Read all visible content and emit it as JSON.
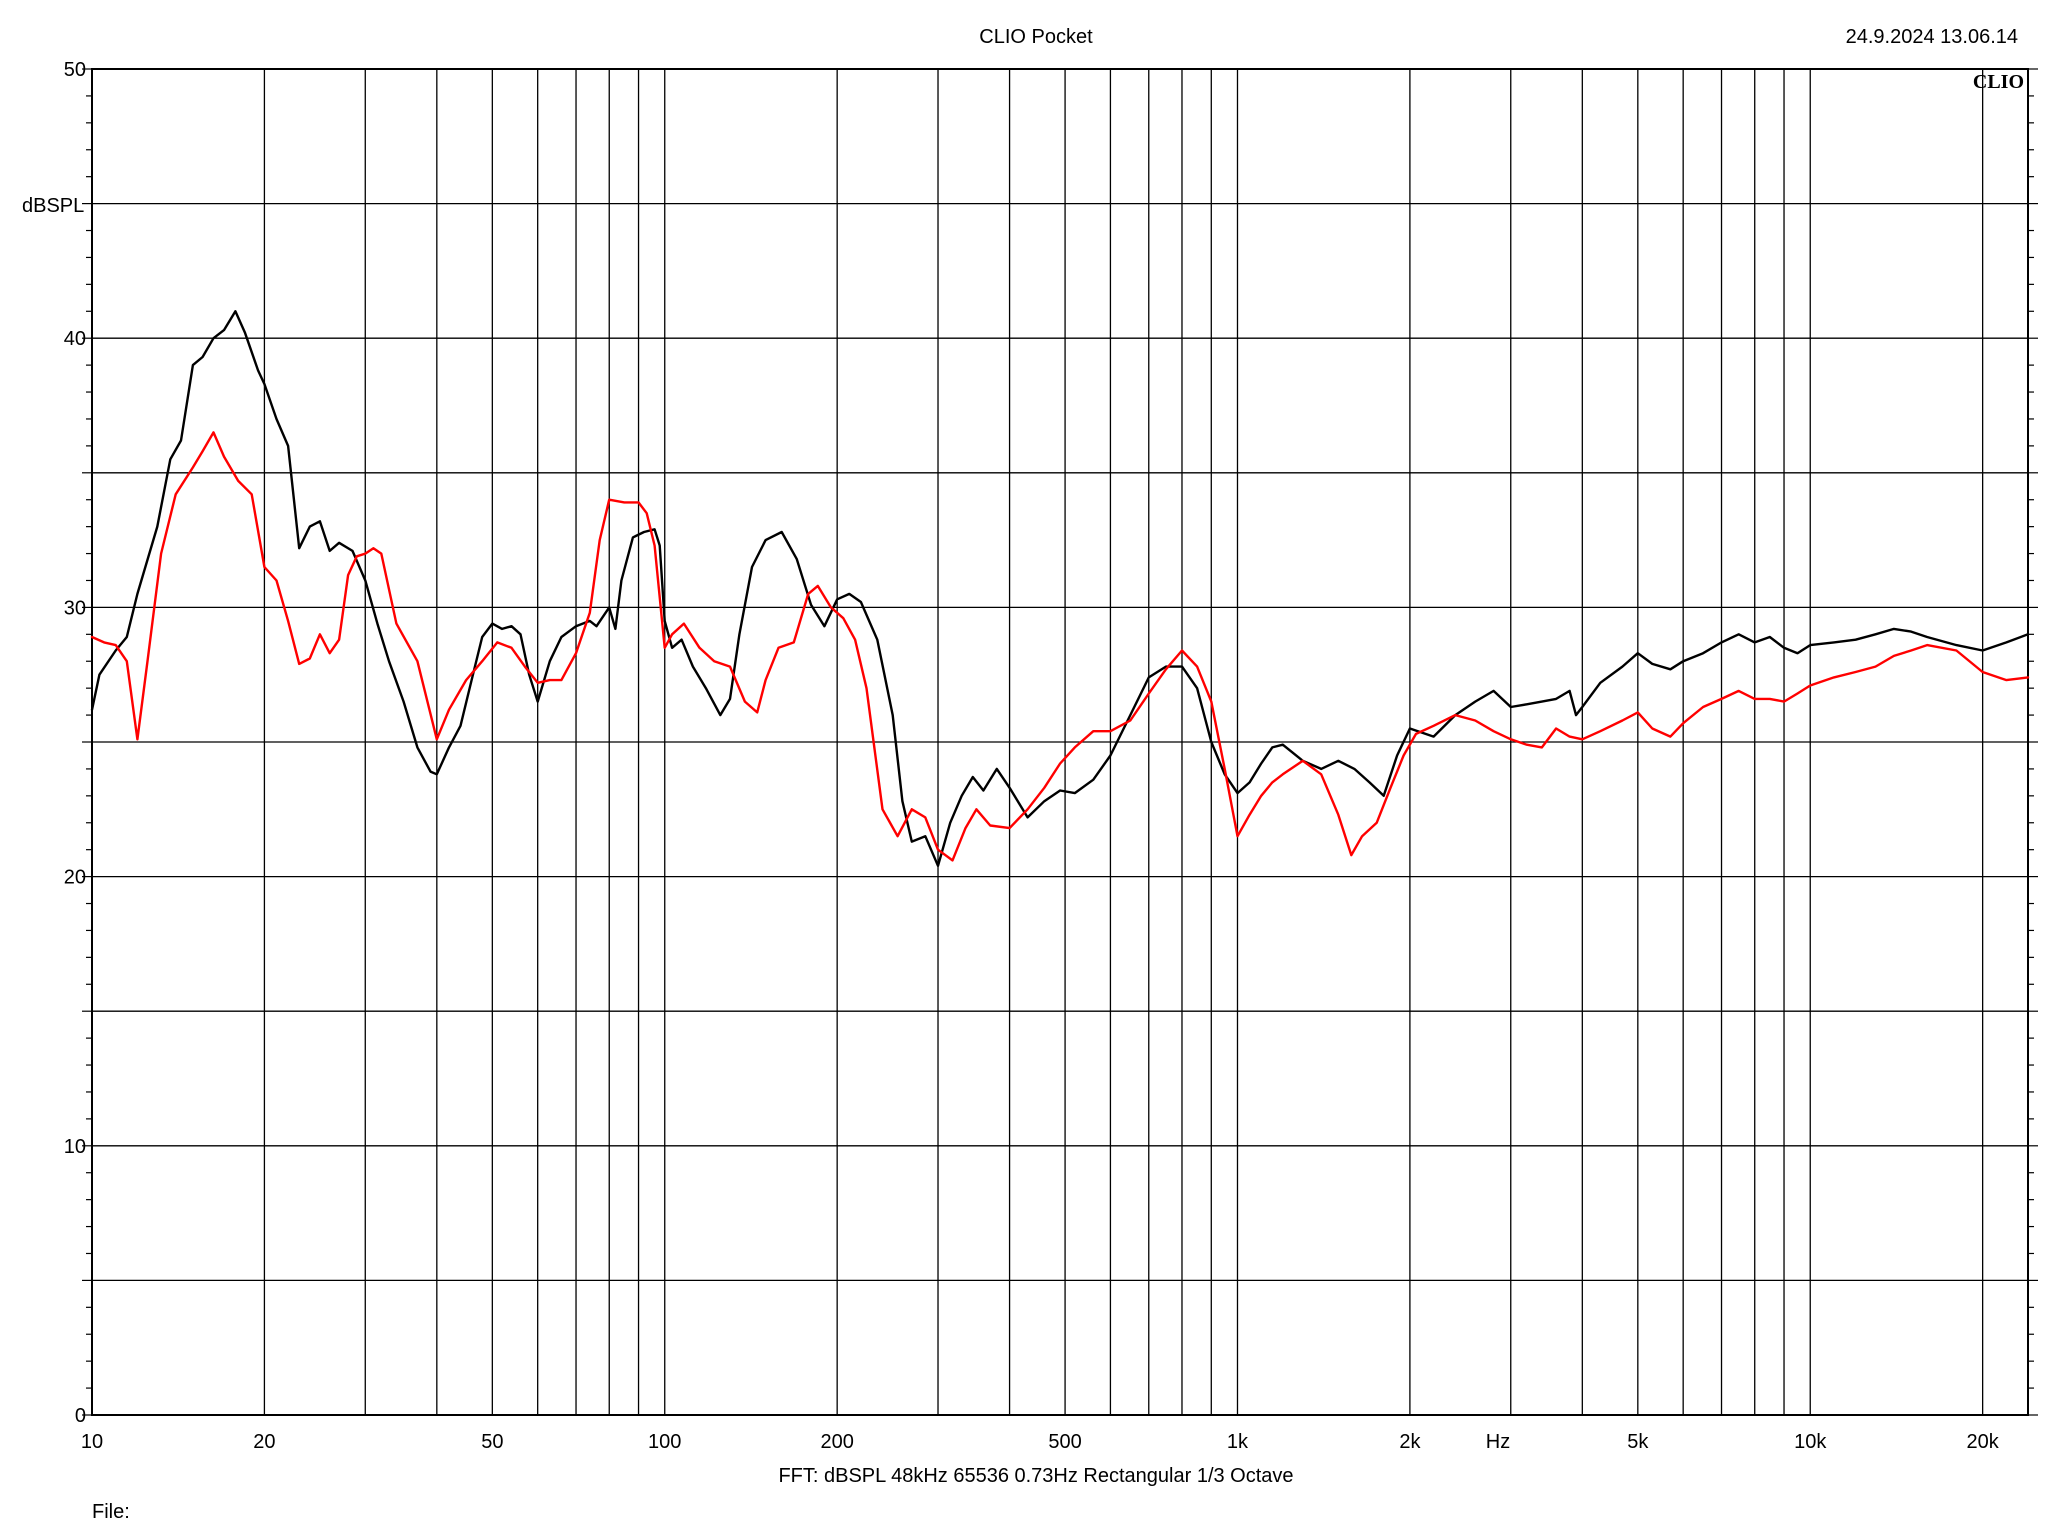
{
  "header": {
    "title": "CLIO Pocket",
    "timestamp": "24.9.2024 13.06.14",
    "logo": "CLIO"
  },
  "footer": {
    "settings": "FFT:  dBSPL  48kHz   65536  0.73Hz  Rectangular  1/3 Octave",
    "file_label": "File:"
  },
  "chart_data": {
    "type": "line",
    "title": "CLIO Pocket",
    "xlabel": "Hz",
    "ylabel": "dBSPL",
    "xscale": "log",
    "xlim": [
      10,
      24000
    ],
    "ylim": [
      0,
      50
    ],
    "grid": true,
    "x_ticks": [
      {
        "value": 10,
        "label": "10"
      },
      {
        "value": 20,
        "label": "20"
      },
      {
        "value": 50,
        "label": "50"
      },
      {
        "value": 100,
        "label": "100"
      },
      {
        "value": 200,
        "label": "200"
      },
      {
        "value": 500,
        "label": "500"
      },
      {
        "value": 1000,
        "label": "1k"
      },
      {
        "value": 2000,
        "label": "2k"
      },
      {
        "value": 5000,
        "label": "5k"
      },
      {
        "value": 10000,
        "label": "10k"
      },
      {
        "value": 20000,
        "label": "20k"
      }
    ],
    "y_ticks": [
      {
        "value": 0,
        "label": "0"
      },
      {
        "value": 10,
        "label": "10"
      },
      {
        "value": 20,
        "label": "20"
      },
      {
        "value": 30,
        "label": "30"
      },
      {
        "value": 40,
        "label": "40"
      },
      {
        "value": 50,
        "label": "50"
      }
    ],
    "series": [
      {
        "color": "#000000",
        "points": [
          [
            10,
            26.2
          ],
          [
            10.3,
            27.5
          ],
          [
            11,
            28.4
          ],
          [
            11.5,
            28.9
          ],
          [
            12,
            30.5
          ],
          [
            13,
            33.0
          ],
          [
            13.7,
            35.5
          ],
          [
            14.3,
            36.2
          ],
          [
            15,
            39.0
          ],
          [
            15.6,
            39.3
          ],
          [
            16.3,
            40.0
          ],
          [
            17,
            40.3
          ],
          [
            17.8,
            41.0
          ],
          [
            18.5,
            40.2
          ],
          [
            19.5,
            38.8
          ],
          [
            20,
            38.3
          ],
          [
            21,
            37.0
          ],
          [
            22,
            36.0
          ],
          [
            23,
            32.2
          ],
          [
            24,
            33.0
          ],
          [
            25,
            33.2
          ],
          [
            26,
            32.1
          ],
          [
            27,
            32.4
          ],
          [
            28.5,
            32.1
          ],
          [
            30,
            31.0
          ],
          [
            31.5,
            29.4
          ],
          [
            33,
            28.0
          ],
          [
            35,
            26.5
          ],
          [
            37,
            24.8
          ],
          [
            39,
            23.9
          ],
          [
            40,
            23.8
          ],
          [
            42,
            24.8
          ],
          [
            44,
            25.6
          ],
          [
            46,
            27.3
          ],
          [
            48,
            28.9
          ],
          [
            50,
            29.4
          ],
          [
            52,
            29.2
          ],
          [
            54,
            29.3
          ],
          [
            56,
            29.0
          ],
          [
            58,
            27.5
          ],
          [
            60,
            26.5
          ],
          [
            63,
            28.0
          ],
          [
            66,
            28.9
          ],
          [
            70,
            29.3
          ],
          [
            74,
            29.5
          ],
          [
            76,
            29.3
          ],
          [
            80,
            30.0
          ],
          [
            82,
            29.2
          ],
          [
            84,
            31.0
          ],
          [
            88,
            32.6
          ],
          [
            92,
            32.8
          ],
          [
            96,
            32.9
          ],
          [
            98,
            32.3
          ],
          [
            100,
            29.5
          ],
          [
            103,
            28.5
          ],
          [
            107,
            28.8
          ],
          [
            112,
            27.8
          ],
          [
            118,
            27.0
          ],
          [
            125,
            26.0
          ],
          [
            130,
            26.6
          ],
          [
            135,
            29.0
          ],
          [
            142,
            31.5
          ],
          [
            150,
            32.5
          ],
          [
            160,
            32.8
          ],
          [
            170,
            31.8
          ],
          [
            180,
            30.1
          ],
          [
            190,
            29.3
          ],
          [
            200,
            30.3
          ],
          [
            210,
            30.5
          ],
          [
            220,
            30.2
          ],
          [
            235,
            28.8
          ],
          [
            250,
            26.0
          ],
          [
            260,
            22.8
          ],
          [
            270,
            21.3
          ],
          [
            285,
            21.5
          ],
          [
            300,
            20.4
          ],
          [
            315,
            22.0
          ],
          [
            330,
            23.0
          ],
          [
            345,
            23.7
          ],
          [
            360,
            23.2
          ],
          [
            380,
            24.0
          ],
          [
            400,
            23.3
          ],
          [
            430,
            22.2
          ],
          [
            460,
            22.8
          ],
          [
            490,
            23.2
          ],
          [
            520,
            23.1
          ],
          [
            560,
            23.6
          ],
          [
            600,
            24.5
          ],
          [
            650,
            26.0
          ],
          [
            700,
            27.4
          ],
          [
            750,
            27.8
          ],
          [
            800,
            27.8
          ],
          [
            850,
            27.0
          ],
          [
            900,
            25.0
          ],
          [
            950,
            23.8
          ],
          [
            1000,
            23.1
          ],
          [
            1050,
            23.5
          ],
          [
            1100,
            24.2
          ],
          [
            1150,
            24.8
          ],
          [
            1200,
            24.9
          ],
          [
            1300,
            24.3
          ],
          [
            1400,
            24.0
          ],
          [
            1500,
            24.3
          ],
          [
            1600,
            24.0
          ],
          [
            1700,
            23.5
          ],
          [
            1800,
            23.0
          ],
          [
            1900,
            24.5
          ],
          [
            2000,
            25.5
          ],
          [
            2200,
            25.2
          ],
          [
            2400,
            26.0
          ],
          [
            2600,
            26.5
          ],
          [
            2800,
            26.9
          ],
          [
            3000,
            26.3
          ],
          [
            3200,
            26.4
          ],
          [
            3400,
            26.5
          ],
          [
            3600,
            26.6
          ],
          [
            3800,
            26.9
          ],
          [
            3900,
            26.0
          ],
          [
            4000,
            26.3
          ],
          [
            4300,
            27.2
          ],
          [
            4700,
            27.8
          ],
          [
            5000,
            28.3
          ],
          [
            5300,
            27.9
          ],
          [
            5700,
            27.7
          ],
          [
            6000,
            28.0
          ],
          [
            6500,
            28.3
          ],
          [
            7000,
            28.7
          ],
          [
            7500,
            29.0
          ],
          [
            8000,
            28.7
          ],
          [
            8500,
            28.9
          ],
          [
            9000,
            28.5
          ],
          [
            9500,
            28.3
          ],
          [
            10000,
            28.6
          ],
          [
            11000,
            28.7
          ],
          [
            12000,
            28.8
          ],
          [
            13000,
            29.0
          ],
          [
            14000,
            29.2
          ],
          [
            15000,
            29.1
          ],
          [
            16000,
            28.9
          ],
          [
            18000,
            28.6
          ],
          [
            20000,
            28.4
          ],
          [
            22000,
            28.7
          ],
          [
            24000,
            29.0
          ]
        ]
      },
      {
        "color": "#ff0000",
        "points": [
          [
            10,
            28.9
          ],
          [
            10.5,
            28.7
          ],
          [
            11,
            28.6
          ],
          [
            11.5,
            28.0
          ],
          [
            12,
            25.1
          ],
          [
            12.5,
            28.0
          ],
          [
            13.2,
            32.0
          ],
          [
            14,
            34.2
          ],
          [
            15,
            35.2
          ],
          [
            15.6,
            35.8
          ],
          [
            16.3,
            36.5
          ],
          [
            17,
            35.6
          ],
          [
            18,
            34.7
          ],
          [
            19,
            34.2
          ],
          [
            20,
            31.5
          ],
          [
            21,
            31.0
          ],
          [
            22,
            29.5
          ],
          [
            23,
            27.9
          ],
          [
            24,
            28.1
          ],
          [
            25,
            29.0
          ],
          [
            26,
            28.3
          ],
          [
            27,
            28.8
          ],
          [
            28,
            31.2
          ],
          [
            29,
            31.9
          ],
          [
            30,
            32.0
          ],
          [
            31,
            32.2
          ],
          [
            32,
            32.0
          ],
          [
            34,
            29.4
          ],
          [
            37,
            28.0
          ],
          [
            40,
            25.1
          ],
          [
            42,
            26.2
          ],
          [
            45,
            27.3
          ],
          [
            48,
            28.0
          ],
          [
            51,
            28.7
          ],
          [
            54,
            28.5
          ],
          [
            57,
            27.8
          ],
          [
            60,
            27.2
          ],
          [
            63,
            27.3
          ],
          [
            66,
            27.3
          ],
          [
            70,
            28.3
          ],
          [
            74,
            29.8
          ],
          [
            77,
            32.5
          ],
          [
            80,
            34.0
          ],
          [
            85,
            33.9
          ],
          [
            90,
            33.9
          ],
          [
            93,
            33.5
          ],
          [
            96,
            32.3
          ],
          [
            100,
            28.5
          ],
          [
            103,
            29.0
          ],
          [
            108,
            29.4
          ],
          [
            115,
            28.5
          ],
          [
            122,
            28.0
          ],
          [
            130,
            27.8
          ],
          [
            138,
            26.5
          ],
          [
            145,
            26.1
          ],
          [
            150,
            27.3
          ],
          [
            158,
            28.5
          ],
          [
            168,
            28.7
          ],
          [
            178,
            30.5
          ],
          [
            185,
            30.8
          ],
          [
            195,
            30.0
          ],
          [
            205,
            29.6
          ],
          [
            215,
            28.8
          ],
          [
            225,
            27.0
          ],
          [
            240,
            22.5
          ],
          [
            255,
            21.5
          ],
          [
            270,
            22.5
          ],
          [
            285,
            22.2
          ],
          [
            300,
            21.0
          ],
          [
            318,
            20.6
          ],
          [
            335,
            21.8
          ],
          [
            350,
            22.5
          ],
          [
            370,
            21.9
          ],
          [
            400,
            21.8
          ],
          [
            430,
            22.5
          ],
          [
            460,
            23.3
          ],
          [
            490,
            24.2
          ],
          [
            520,
            24.8
          ],
          [
            560,
            25.4
          ],
          [
            600,
            25.4
          ],
          [
            650,
            25.8
          ],
          [
            700,
            26.8
          ],
          [
            750,
            27.7
          ],
          [
            800,
            28.4
          ],
          [
            850,
            27.8
          ],
          [
            900,
            26.5
          ],
          [
            950,
            24.0
          ],
          [
            1000,
            21.5
          ],
          [
            1050,
            22.3
          ],
          [
            1100,
            23.0
          ],
          [
            1150,
            23.5
          ],
          [
            1200,
            23.8
          ],
          [
            1300,
            24.3
          ],
          [
            1400,
            23.8
          ],
          [
            1500,
            22.3
          ],
          [
            1580,
            20.8
          ],
          [
            1650,
            21.5
          ],
          [
            1750,
            22.0
          ],
          [
            1850,
            23.3
          ],
          [
            1950,
            24.5
          ],
          [
            2050,
            25.3
          ],
          [
            2200,
            25.6
          ],
          [
            2400,
            26.0
          ],
          [
            2600,
            25.8
          ],
          [
            2800,
            25.4
          ],
          [
            3000,
            25.1
          ],
          [
            3200,
            24.9
          ],
          [
            3400,
            24.8
          ],
          [
            3600,
            25.5
          ],
          [
            3800,
            25.2
          ],
          [
            4000,
            25.1
          ],
          [
            4300,
            25.4
          ],
          [
            4700,
            25.8
          ],
          [
            5000,
            26.1
          ],
          [
            5300,
            25.5
          ],
          [
            5700,
            25.2
          ],
          [
            6000,
            25.7
          ],
          [
            6500,
            26.3
          ],
          [
            7000,
            26.6
          ],
          [
            7500,
            26.9
          ],
          [
            8000,
            26.6
          ],
          [
            8500,
            26.6
          ],
          [
            9000,
            26.5
          ],
          [
            9500,
            26.8
          ],
          [
            10000,
            27.1
          ],
          [
            11000,
            27.4
          ],
          [
            12000,
            27.6
          ],
          [
            13000,
            27.8
          ],
          [
            14000,
            28.2
          ],
          [
            15000,
            28.4
          ],
          [
            16000,
            28.6
          ],
          [
            18000,
            28.4
          ],
          [
            20000,
            27.6
          ],
          [
            22000,
            27.3
          ],
          [
            24000,
            27.4
          ]
        ]
      }
    ]
  }
}
